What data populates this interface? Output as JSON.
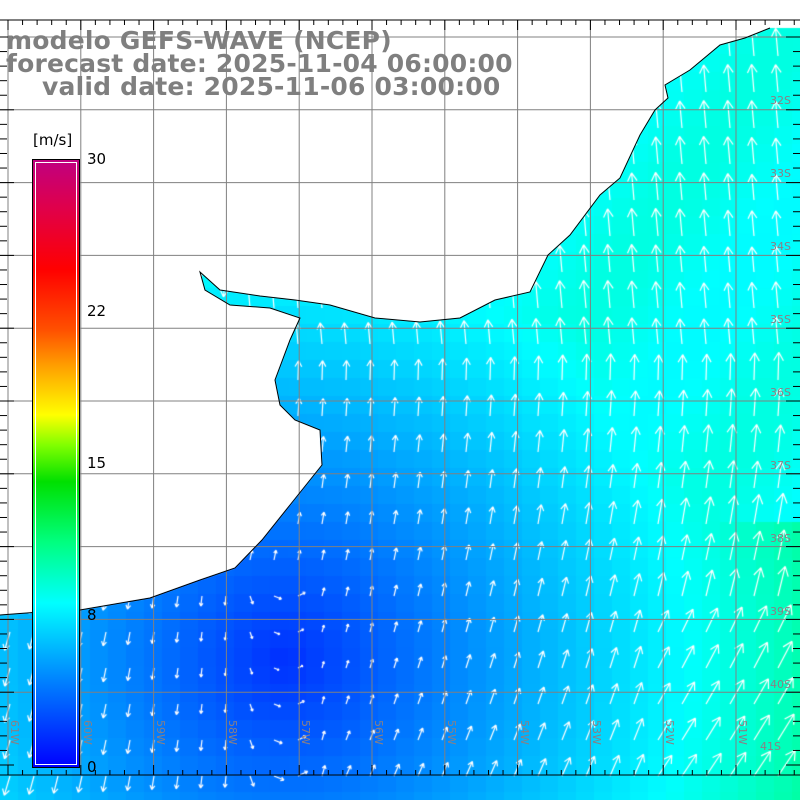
{
  "title": {
    "model": "modelo GEFS-WAVE (NCEP)",
    "forecast": "forecast date: 2025-11-04 06:00:00",
    "valid": "valid date: 2025-11-06 03:00:00"
  },
  "colorbar": {
    "unit": "[m/s]",
    "labels": [
      "30",
      "22",
      "15",
      "8",
      "0"
    ],
    "range": [
      0,
      30
    ]
  },
  "axes": {
    "lat_labels": [
      "32S",
      "33S",
      "34S",
      "35S",
      "36S",
      "37S",
      "38S",
      "39S",
      "40S",
      "41S"
    ],
    "lon_labels": [
      "61W",
      "60W",
      "59W",
      "58W",
      "57W",
      "56W",
      "55W",
      "54W",
      "53W",
      "52W",
      "51W"
    ]
  },
  "colors": {
    "land": "#ffffff",
    "coast": "#000000",
    "grid": "#808080",
    "label": "#8a7f85",
    "title": "#7f7f7f"
  }
}
